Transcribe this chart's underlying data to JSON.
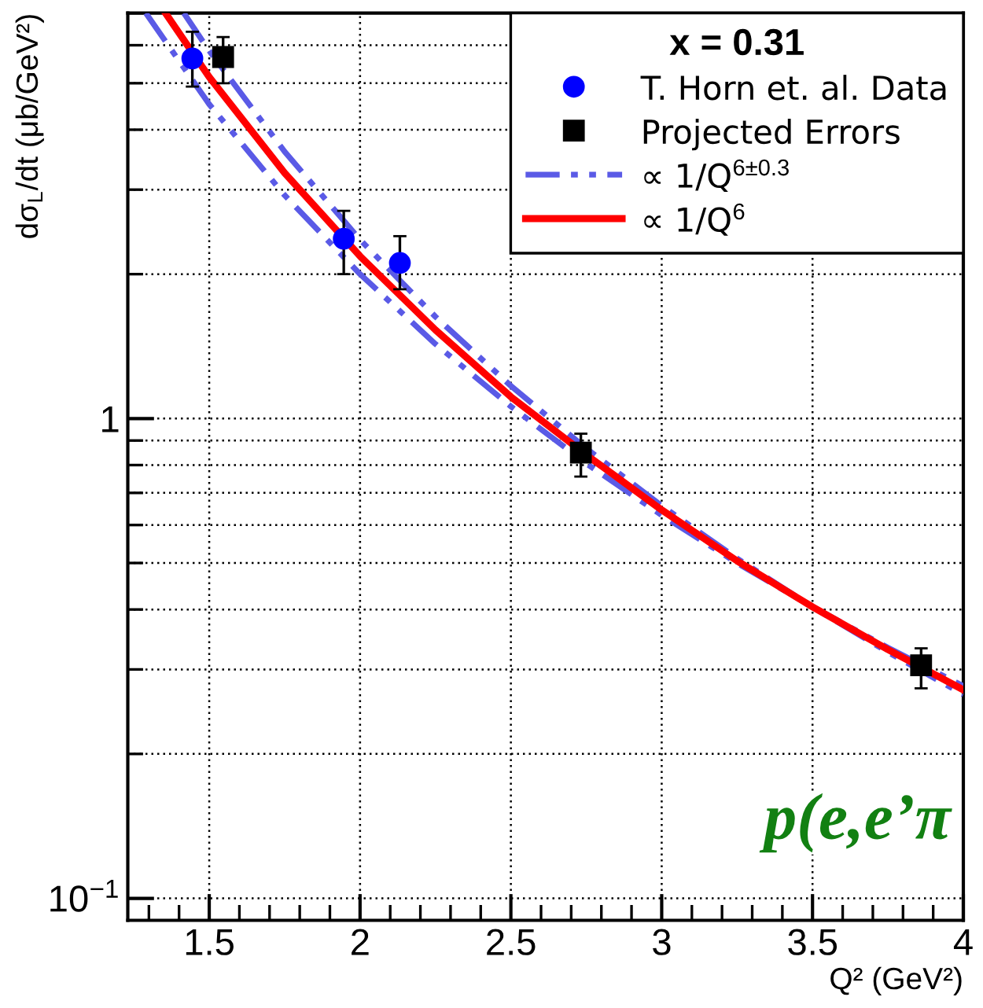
{
  "chart_data": {
    "type": "scatter",
    "xlabel": "Q² (GeV²)",
    "ylabel": "dσ$_{L}$/dt (μb/GeV²)",
    "legend_title": "x = 0.31",
    "annotations": [
      "p(e,e’π"
    ],
    "series": [
      {
        "name": "T. Horn et. al. Data",
        "marker": "circle",
        "color": "#0000ff",
        "x": [
          1.444,
          1.946,
          2.132
        ],
        "values": [
          5.63,
          2.37,
          2.11
        ],
        "errors": [
          [
            4.92,
            6.4
          ],
          [
            2.0,
            2.71
          ],
          [
            1.86,
            2.4
          ]
        ]
      },
      {
        "name": "Projected Errors",
        "marker": "square",
        "color": "#000000",
        "x": [
          1.546,
          2.732,
          3.86
        ],
        "values": [
          5.67,
          0.849,
          0.306
        ],
        "errors": [
          [
            5.0,
            6.24
          ],
          [
            0.757,
            0.93
          ],
          [
            0.274,
            0.332
          ]
        ]
      },
      {
        "name": "∝ 1/Q$^{6±0.3}$",
        "type": "line",
        "line_style": "dashed",
        "color": "#5a5ae6",
        "x": [
          1.416,
          1.5,
          1.75,
          2,
          2.25,
          2.5,
          2.75,
          3,
          3.25,
          3.5,
          3.75,
          4
        ],
        "values": [
          7.0,
          5.84,
          3.6,
          2.36,
          1.63,
          1.17,
          0.866,
          0.658,
          0.511,
          0.405,
          0.326,
          0.266
        ]
      },
      {
        "type": "line",
        "line_style": "dashed",
        "color": "#5a5ae6",
        "x": [
          1.29,
          1.5,
          1.75,
          2,
          2.25,
          2.5,
          2.75,
          3,
          3.25,
          3.5,
          3.75,
          4
        ],
        "values": [
          7.0,
          4.52,
          2.92,
          2.0,
          1.43,
          1.06,
          0.806,
          0.629,
          0.5,
          0.405,
          0.333,
          0.277
        ]
      },
      {
        "name": "∝ 1/Q$^{6}$",
        "type": "line",
        "line_style": "solid",
        "color": "#ff0000",
        "x": [
          1.355,
          1.5,
          1.75,
          2,
          2.25,
          2.5,
          2.75,
          3,
          3.25,
          3.5,
          3.75,
          4
        ],
        "values": [
          7.0,
          5.15,
          3.25,
          2.18,
          1.53,
          1.11,
          0.84,
          0.645,
          0.505,
          0.405,
          0.33,
          0.272
        ]
      }
    ],
    "log": "y",
    "xlim": [
      1.23,
      4.0
    ],
    "ylim": [
      0.09,
      7
    ],
    "xticks": [
      {
        "value": 1.3,
        "label": null
      },
      {
        "value": 1.4,
        "label": null
      },
      1.5,
      {
        "value": 1.6,
        "label": null
      },
      {
        "value": 1.7,
        "label": null
      },
      {
        "value": 1.8,
        "label": null
      },
      {
        "value": 1.9,
        "label": null
      },
      2,
      {
        "value": 2.1,
        "label": null
      },
      {
        "value": 2.2,
        "label": null
      },
      {
        "value": 2.3,
        "label": null
      },
      {
        "value": 2.4,
        "label": null
      },
      2.5,
      {
        "value": 2.6,
        "label": null
      },
      {
        "value": 2.7,
        "label": null
      },
      {
        "value": 2.8,
        "label": null
      },
      {
        "value": 2.9,
        "label": null
      },
      3,
      {
        "value": 3.1,
        "label": null
      },
      {
        "value": 3.2,
        "label": null
      },
      {
        "value": 3.3,
        "label": null
      },
      {
        "value": 3.4,
        "label": null
      },
      3.5,
      {
        "value": 3.6,
        "label": null
      },
      {
        "value": 3.7,
        "label": null
      },
      {
        "value": 3.8,
        "label": null
      },
      {
        "value": 3.9,
        "label": null
      },
      4
    ],
    "yticks": [
      {
        "value": 0.1,
        "label": "10$^{−1}$"
      },
      {
        "value": 0.2,
        "label": null
      },
      {
        "value": 0.3,
        "label": null
      },
      {
        "value": 0.4,
        "label": null
      },
      {
        "value": 0.5,
        "label": null
      },
      {
        "value": 0.6,
        "label": null
      },
      {
        "value": 0.7,
        "label": null
      },
      {
        "value": 0.8,
        "label": null
      },
      {
        "value": 0.9,
        "label": null
      },
      1,
      {
        "value": 2,
        "label": null
      },
      {
        "value": 3,
        "label": null
      },
      {
        "value": 4,
        "label": null
      },
      {
        "value": 5,
        "label": null
      },
      {
        "value": 6,
        "label": null
      },
      {
        "value": 7,
        "label": null
      }
    ],
    "grid": true,
    "legend": "top right"
  }
}
